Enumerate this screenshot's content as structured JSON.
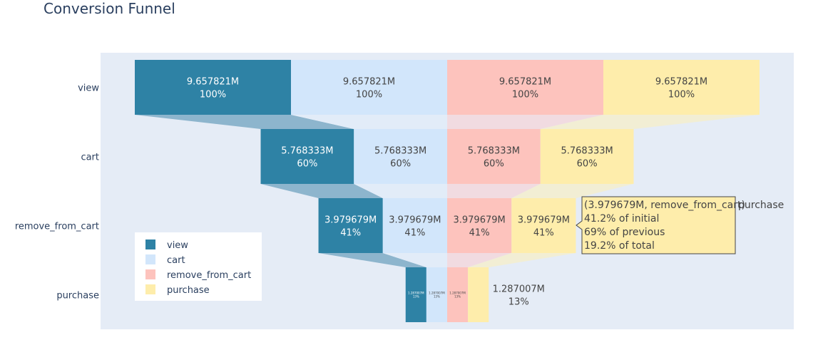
{
  "chart_data": {
    "type": "funnel",
    "title": "Conversion Funnel",
    "stages": [
      "view",
      "cart",
      "remove_from_cart",
      "purchase"
    ],
    "series": [
      {
        "name": "view",
        "color": "#2e82a5",
        "text_color": "#ffffff",
        "values": [
          "9.657821M",
          "5.768333M",
          "3.979679M",
          "1.287007M"
        ],
        "percents": [
          "100%",
          "60%",
          "41%",
          "13%"
        ]
      },
      {
        "name": "cart",
        "color": "#d2e6fb",
        "text_color": "#444444",
        "values": [
          "9.657821M",
          "5.768333M",
          "3.979679M",
          "1.287007M"
        ],
        "percents": [
          "100%",
          "60%",
          "41%",
          "13%"
        ]
      },
      {
        "name": "remove_from_cart",
        "color": "#fdc3bd",
        "text_color": "#444444",
        "values": [
          "9.657821M",
          "5.768333M",
          "3.979679M",
          "1.287007M"
        ],
        "percents": [
          "100%",
          "60%",
          "41%",
          "13%"
        ]
      },
      {
        "name": "purchase",
        "color": "#feedab",
        "text_color": "#444444",
        "values": [
          "9.657821M",
          "5.768333M",
          "3.979679M",
          "1.287007M"
        ],
        "percents": [
          "100%",
          "60%",
          "41%",
          "13%"
        ]
      }
    ],
    "value_ratio": [
      1,
      0.597,
      0.412,
      0.133
    ],
    "connector_colors": [
      "#8db5cd",
      "#e2ecf8",
      "#f1dbe1",
      "#f2eed4"
    ],
    "legend_position": "bottom-left",
    "plot_background": "#e5ecf6"
  },
  "tooltip": {
    "line1": "(3.979679M, remove_from_cart)",
    "line2": "41.2% of initial",
    "line3": "69% of previous",
    "line4": "19.2% of total",
    "series_name": "purchase",
    "border_color": "#444444",
    "background": "#feedab"
  }
}
